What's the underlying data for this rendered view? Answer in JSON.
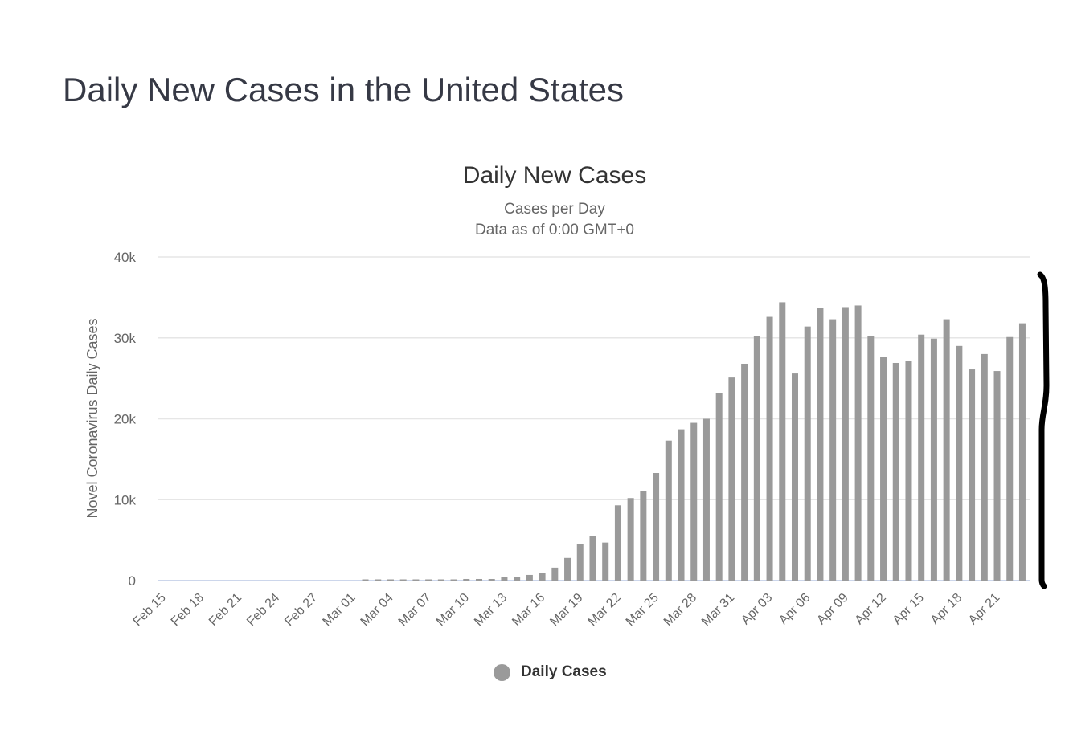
{
  "page": {
    "title": "Daily New Cases in the United States"
  },
  "legend": {
    "items": [
      {
        "label": "Daily Cases",
        "color": "#9a9a9a"
      }
    ]
  },
  "chart_data": {
    "type": "bar",
    "title": "Daily New Cases",
    "subtitle_lines": [
      "Cases per Day",
      "Data as of 0:00 GMT+0"
    ],
    "xlabel": "",
    "ylabel": "Novel Coronavirus Daily Cases",
    "ylim": [
      0,
      40000
    ],
    "yticks": [
      0,
      10000,
      20000,
      30000,
      40000
    ],
    "ytick_labels": [
      "0",
      "10k",
      "20k",
      "30k",
      "40k"
    ],
    "grid": true,
    "legend_position": "bottom-center",
    "bar_color": "#9a9a9a",
    "categories": [
      "Feb 15",
      "Feb 16",
      "Feb 17",
      "Feb 18",
      "Feb 19",
      "Feb 20",
      "Feb 21",
      "Feb 22",
      "Feb 23",
      "Feb 24",
      "Feb 25",
      "Feb 26",
      "Feb 27",
      "Feb 28",
      "Feb 29",
      "Mar 01",
      "Mar 02",
      "Mar 03",
      "Mar 04",
      "Mar 05",
      "Mar 06",
      "Mar 07",
      "Mar 08",
      "Mar 09",
      "Mar 10",
      "Mar 11",
      "Mar 12",
      "Mar 13",
      "Mar 14",
      "Mar 15",
      "Mar 16",
      "Mar 17",
      "Mar 18",
      "Mar 19",
      "Mar 20",
      "Mar 21",
      "Mar 22",
      "Mar 23",
      "Mar 24",
      "Mar 25",
      "Mar 26",
      "Mar 27",
      "Mar 28",
      "Mar 29",
      "Mar 30",
      "Mar 31",
      "Apr 01",
      "Apr 02",
      "Apr 03",
      "Apr 04",
      "Apr 05",
      "Apr 06",
      "Apr 07",
      "Apr 08",
      "Apr 09",
      "Apr 10",
      "Apr 11",
      "Apr 12",
      "Apr 13",
      "Apr 14",
      "Apr 15",
      "Apr 16",
      "Apr 17",
      "Apr 18",
      "Apr 19",
      "Apr 20",
      "Apr 21",
      "Apr 22",
      "Apr 23"
    ],
    "xtick_labels": [
      "Feb 15",
      "Feb 18",
      "Feb 21",
      "Feb 24",
      "Feb 27",
      "Mar 01",
      "Mar 04",
      "Mar 07",
      "Mar 10",
      "Mar 13",
      "Mar 16",
      "Mar 19",
      "Mar 22",
      "Mar 25",
      "Mar 28",
      "Mar 31",
      "Apr 03",
      "Apr 06",
      "Apr 09",
      "Apr 12",
      "Apr 15",
      "Apr 18",
      "Apr 21"
    ],
    "series": [
      {
        "name": "Daily Cases",
        "values": [
          0,
          0,
          0,
          0,
          0,
          0,
          0,
          0,
          0,
          0,
          0,
          0,
          0,
          0,
          0,
          0,
          20,
          20,
          30,
          40,
          50,
          60,
          80,
          100,
          200,
          200,
          200,
          400,
          400,
          700,
          900,
          1600,
          2800,
          4500,
          5500,
          4700,
          9300,
          10200,
          11100,
          13300,
          17300,
          18700,
          19500,
          20000,
          23200,
          25100,
          26800,
          30200,
          32600,
          34400,
          25600,
          31400,
          33700,
          32300,
          33800,
          34000,
          30200,
          27600,
          26900,
          27100,
          30400,
          29900,
          32300,
          29000,
          26100,
          28000,
          25900,
          30100,
          31800
        ]
      }
    ]
  }
}
